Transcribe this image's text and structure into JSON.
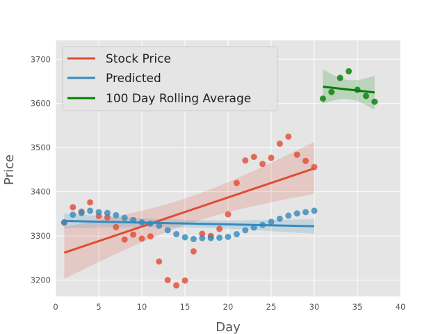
{
  "chart_data": {
    "type": "scatter",
    "xlabel": "Day",
    "ylabel": "Price",
    "xlim": [
      0,
      40
    ],
    "ylim": [
      3163,
      3743
    ],
    "xticks": [
      0,
      5,
      10,
      15,
      20,
      25,
      30,
      35,
      40
    ],
    "yticks": [
      3200,
      3300,
      3400,
      3500,
      3600,
      3700
    ],
    "grid": true,
    "legend_position": "top-left",
    "series": [
      {
        "name": "Stock Price",
        "color": "#E24A33",
        "x": [
          1,
          2,
          3,
          4,
          5,
          6,
          7,
          8,
          9,
          10,
          11,
          12,
          13,
          14,
          15,
          16,
          17,
          18,
          19,
          20,
          21,
          22,
          23,
          24,
          25,
          26,
          27,
          28,
          29,
          30
        ],
        "y": [
          3330,
          3365,
          3355,
          3376,
          3345,
          3342,
          3320,
          3292,
          3303,
          3294,
          3299,
          3242,
          3200,
          3188,
          3199,
          3265,
          3305,
          3300,
          3316,
          3349,
          3420,
          3471,
          3479,
          3463,
          3477,
          3509,
          3525,
          3484,
          3470,
          3456
        ],
        "fit": {
          "x": [
            1,
            30
          ],
          "y": [
            3262,
            3453
          ]
        }
      },
      {
        "name": "Predicted",
        "color": "#348ABD",
        "x": [
          1,
          2,
          3,
          4,
          5,
          6,
          7,
          8,
          9,
          10,
          11,
          12,
          13,
          14,
          15,
          16,
          17,
          18,
          19,
          20,
          21,
          22,
          23,
          24,
          25,
          26,
          27,
          28,
          29,
          30
        ],
        "y": [
          3331,
          3348,
          3352,
          3357,
          3354,
          3352,
          3347,
          3341,
          3336,
          3331,
          3328,
          3323,
          3313,
          3304,
          3297,
          3293,
          3295,
          3295,
          3296,
          3298,
          3304,
          3313,
          3319,
          3325,
          3332,
          3339,
          3346,
          3351,
          3354,
          3357
        ],
        "fit": {
          "x": [
            1,
            30
          ],
          "y": [
            3334,
            3322
          ]
        }
      },
      {
        "name": "100 Day Rolling Average",
        "color": "#008000",
        "x": [
          31,
          32,
          33,
          34,
          35,
          36,
          37
        ],
        "y": [
          3611,
          3626,
          3658,
          3673,
          3631,
          3617,
          3604
        ],
        "fit": {
          "x": [
            31,
            37
          ],
          "y": [
            3638,
            3625
          ]
        }
      }
    ]
  }
}
